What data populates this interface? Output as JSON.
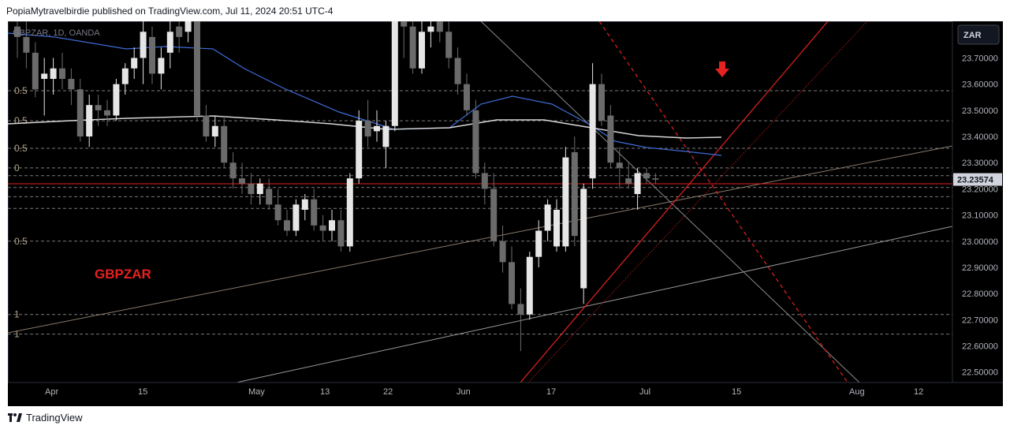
{
  "header": {
    "text": "PopiaMytravelbirdie published on TradingView.com, Jul 11, 2024 20:51 UTC-4"
  },
  "symbol_info": "GBPZAR, 1D, OANDA",
  "currency_button": "ZAR",
  "annotation": {
    "text": "GBPZAR",
    "color": "#e5221f"
  },
  "footer": {
    "brand": "TradingView"
  },
  "price_tag": {
    "value": "23.23574",
    "price": 23.23574,
    "bg": "#d1d4dc",
    "color": "#131722"
  },
  "colors": {
    "up": "#e6e6e6",
    "down": "#6b6b6b",
    "ma_blue": "#3f6bd6",
    "ma_white": "#d8d8d8",
    "trend_red": "#e5221f",
    "fib_line": "#7a7a7a",
    "channel": "#8a7a6a"
  },
  "chart_data": {
    "type": "candlestick",
    "title": "",
    "symbol": "GBPZAR",
    "timeframe": "1D",
    "y_axis": {
      "ticks": [
        "23.70000",
        "23.60000",
        "23.50000",
        "23.40000",
        "23.30000",
        "23.20000",
        "23.10000",
        "23.00000",
        "22.90000",
        "22.80000",
        "22.70000",
        "22.60000",
        "22.50000"
      ],
      "range": [
        22.46,
        23.84
      ]
    },
    "x_axis": {
      "ticks": [
        "Apr",
        "15",
        "May",
        "13",
        "22",
        "Jun",
        "17",
        "Jul",
        "15",
        "Aug",
        "12"
      ]
    },
    "fib_levels": [
      {
        "label": "0.5",
        "price": 23.575
      },
      {
        "label": "0.5",
        "price": 23.46
      },
      {
        "label": "0.5",
        "price": 23.355
      },
      {
        "label": "0",
        "price": 23.28
      },
      {
        "label": "",
        "price": 23.25
      },
      {
        "label": "",
        "price": 23.205
      },
      {
        "label": "",
        "price": 23.17
      },
      {
        "label": "",
        "price": 23.125
      },
      {
        "label": "0.5",
        "price": 23.0
      },
      {
        "label": "1",
        "price": 22.72
      },
      {
        "label": "1",
        "price": 22.645
      }
    ],
    "candles": [
      {
        "o": 23.82,
        "h": 23.86,
        "l": 23.7,
        "c": 23.78
      },
      {
        "o": 23.78,
        "h": 23.84,
        "l": 23.66,
        "c": 23.72
      },
      {
        "o": 23.72,
        "h": 23.76,
        "l": 23.55,
        "c": 23.58
      },
      {
        "o": 23.62,
        "h": 23.7,
        "l": 23.48,
        "c": 23.64
      },
      {
        "o": 23.62,
        "h": 23.7,
        "l": 23.56,
        "c": 23.66
      },
      {
        "o": 23.66,
        "h": 23.72,
        "l": 23.58,
        "c": 23.62
      },
      {
        "o": 23.62,
        "h": 23.66,
        "l": 23.52,
        "c": 23.58
      },
      {
        "o": 23.58,
        "h": 23.62,
        "l": 23.38,
        "c": 23.4
      },
      {
        "o": 23.4,
        "h": 23.56,
        "l": 23.36,
        "c": 23.52
      },
      {
        "o": 23.52,
        "h": 23.56,
        "l": 23.44,
        "c": 23.5
      },
      {
        "o": 23.5,
        "h": 23.54,
        "l": 23.44,
        "c": 23.48
      },
      {
        "o": 23.48,
        "h": 23.62,
        "l": 23.46,
        "c": 23.6
      },
      {
        "o": 23.6,
        "h": 23.68,
        "l": 23.56,
        "c": 23.66
      },
      {
        "o": 23.66,
        "h": 23.74,
        "l": 23.62,
        "c": 23.7
      },
      {
        "o": 23.7,
        "h": 23.84,
        "l": 23.6,
        "c": 23.8
      },
      {
        "o": 23.78,
        "h": 23.82,
        "l": 23.6,
        "c": 23.64
      },
      {
        "o": 23.64,
        "h": 23.74,
        "l": 23.58,
        "c": 23.7
      },
      {
        "o": 23.72,
        "h": 23.84,
        "l": 23.66,
        "c": 23.8
      },
      {
        "o": 23.82,
        "h": 23.86,
        "l": 23.72,
        "c": 23.78
      },
      {
        "o": 23.8,
        "h": 23.86,
        "l": 23.76,
        "c": 23.84
      },
      {
        "o": 23.84,
        "h": 23.86,
        "l": 23.46,
        "c": 23.48
      },
      {
        "o": 23.48,
        "h": 23.52,
        "l": 23.38,
        "c": 23.4
      },
      {
        "o": 23.4,
        "h": 23.48,
        "l": 23.36,
        "c": 23.44
      },
      {
        "o": 23.44,
        "h": 23.48,
        "l": 23.28,
        "c": 23.3
      },
      {
        "o": 23.3,
        "h": 23.34,
        "l": 23.2,
        "c": 23.24
      },
      {
        "o": 23.24,
        "h": 23.3,
        "l": 23.18,
        "c": 23.22
      },
      {
        "o": 23.22,
        "h": 23.26,
        "l": 23.14,
        "c": 23.18
      },
      {
        "o": 23.18,
        "h": 23.24,
        "l": 23.14,
        "c": 23.22
      },
      {
        "o": 23.2,
        "h": 23.24,
        "l": 23.12,
        "c": 23.14
      },
      {
        "o": 23.14,
        "h": 23.2,
        "l": 23.06,
        "c": 23.08
      },
      {
        "o": 23.08,
        "h": 23.12,
        "l": 23.02,
        "c": 23.04
      },
      {
        "o": 23.04,
        "h": 23.16,
        "l": 23.02,
        "c": 23.14
      },
      {
        "o": 23.12,
        "h": 23.18,
        "l": 23.08,
        "c": 23.16
      },
      {
        "o": 23.16,
        "h": 23.2,
        "l": 23.04,
        "c": 23.06
      },
      {
        "o": 23.06,
        "h": 23.1,
        "l": 23.0,
        "c": 23.04
      },
      {
        "o": 23.04,
        "h": 23.12,
        "l": 23.0,
        "c": 23.08
      },
      {
        "o": 23.08,
        "h": 23.12,
        "l": 22.96,
        "c": 22.98
      },
      {
        "o": 22.98,
        "h": 23.26,
        "l": 22.96,
        "c": 23.24
      },
      {
        "o": 23.24,
        "h": 23.5,
        "l": 23.22,
        "c": 23.46
      },
      {
        "o": 23.46,
        "h": 23.54,
        "l": 23.36,
        "c": 23.4
      },
      {
        "o": 23.42,
        "h": 23.5,
        "l": 23.38,
        "c": 23.44
      },
      {
        "o": 23.36,
        "h": 23.46,
        "l": 23.28,
        "c": 23.44
      },
      {
        "o": 23.44,
        "h": 23.86,
        "l": 23.42,
        "c": 23.84
      },
      {
        "o": 23.84,
        "h": 23.86,
        "l": 23.7,
        "c": 23.82
      },
      {
        "o": 23.82,
        "h": 23.84,
        "l": 23.64,
        "c": 23.66
      },
      {
        "o": 23.66,
        "h": 23.84,
        "l": 23.64,
        "c": 23.8
      },
      {
        "o": 23.8,
        "h": 23.84,
        "l": 23.74,
        "c": 23.82
      },
      {
        "o": 23.84,
        "h": 23.86,
        "l": 23.76,
        "c": 23.8
      },
      {
        "o": 23.8,
        "h": 23.84,
        "l": 23.66,
        "c": 23.7
      },
      {
        "o": 23.7,
        "h": 23.74,
        "l": 23.56,
        "c": 23.6
      },
      {
        "o": 23.6,
        "h": 23.64,
        "l": 23.48,
        "c": 23.5
      },
      {
        "o": 23.5,
        "h": 23.54,
        "l": 23.24,
        "c": 23.26
      },
      {
        "o": 23.26,
        "h": 23.3,
        "l": 23.14,
        "c": 23.2
      },
      {
        "o": 23.2,
        "h": 23.26,
        "l": 22.98,
        "c": 23.0
      },
      {
        "o": 23.0,
        "h": 23.06,
        "l": 22.88,
        "c": 22.92
      },
      {
        "o": 22.92,
        "h": 22.98,
        "l": 22.74,
        "c": 22.76
      },
      {
        "o": 22.76,
        "h": 22.82,
        "l": 22.58,
        "c": 22.72
      },
      {
        "o": 22.72,
        "h": 22.96,
        "l": 22.7,
        "c": 22.94
      },
      {
        "o": 22.94,
        "h": 23.08,
        "l": 22.9,
        "c": 23.04
      },
      {
        "o": 23.04,
        "h": 23.16,
        "l": 23.0,
        "c": 23.14
      },
      {
        "o": 22.98,
        "h": 23.16,
        "l": 22.96,
        "c": 23.12
      },
      {
        "o": 22.98,
        "h": 23.36,
        "l": 22.96,
        "c": 23.32
      },
      {
        "o": 23.34,
        "h": 23.4,
        "l": 22.98,
        "c": 23.02
      },
      {
        "o": 22.82,
        "h": 23.22,
        "l": 22.76,
        "c": 23.2
      },
      {
        "o": 23.24,
        "h": 23.68,
        "l": 23.2,
        "c": 23.6
      },
      {
        "o": 23.6,
        "h": 23.64,
        "l": 23.44,
        "c": 23.46
      },
      {
        "o": 23.48,
        "h": 23.52,
        "l": 23.28,
        "c": 23.3
      },
      {
        "o": 23.3,
        "h": 23.36,
        "l": 23.2,
        "c": 23.28
      },
      {
        "o": 23.24,
        "h": 23.3,
        "l": 23.2,
        "c": 23.22
      },
      {
        "o": 23.18,
        "h": 23.28,
        "l": 23.12,
        "c": 23.26
      },
      {
        "o": 23.26,
        "h": 23.28,
        "l": 23.22,
        "c": 23.24
      },
      {
        "o": 23.24,
        "h": 23.26,
        "l": 23.22,
        "c": 23.235
      }
    ]
  }
}
